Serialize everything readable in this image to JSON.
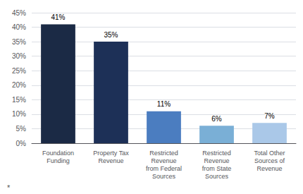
{
  "chart_data": {
    "type": "bar",
    "categories": [
      "Foundation\nFunding",
      "Property Tax\nRevenue",
      "Restricted\nRevenue\nfrom Federal\nSources",
      "Restricted\nRevenue\nfrom State\nSources",
      "Total Other\nSources of\nRevenue"
    ],
    "values": [
      41,
      35,
      11,
      6,
      7
    ],
    "value_labels": [
      "41%",
      "35%",
      "11%",
      "6%",
      "7%"
    ],
    "colors": [
      "#1b2a45",
      "#1d3057",
      "#4b7dc0",
      "#7aafd6",
      "#aac8e8"
    ],
    "ylim": [
      0,
      45
    ],
    "yticks": [
      {
        "value": 0,
        "label": "0%"
      },
      {
        "value": 5,
        "label": "5%"
      },
      {
        "value": 10,
        "label": "10%"
      },
      {
        "value": 15,
        "label": "15%"
      },
      {
        "value": 20,
        "label": "20%"
      },
      {
        "value": 25,
        "label": "25%"
      },
      {
        "value": 30,
        "label": "30%"
      },
      {
        "value": 35,
        "label": "35%"
      },
      {
        "value": 40,
        "label": "40%"
      },
      {
        "value": 45,
        "label": "45%"
      }
    ],
    "grid": true,
    "data_labels": true,
    "annotations": [
      "*"
    ]
  }
}
